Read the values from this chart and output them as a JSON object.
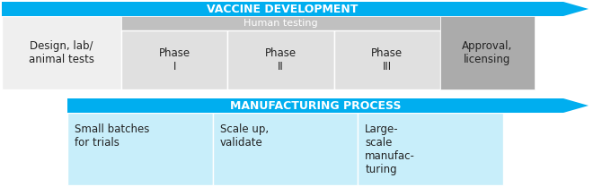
{
  "background_color": "#ffffff",
  "cyan_color": "#00AEEF",
  "light_blue": "#C8EEFA",
  "light_gray": "#E0E0E0",
  "mid_gray": "#C0C0C0",
  "approval_gray": "#ABABAB",
  "design_gray": "#EFEFEF",
  "white": "#FFFFFF",
  "text_dark": "#222222",
  "text_white": "#FFFFFF",
  "section1_title": "VACCINE DEVELOPMENT",
  "section2_title": "MANUFACTURING PROCESS",
  "cell1_label": "Design, lab/\nanimal tests",
  "human_testing_label": "Human testing",
  "phase1_label": "Phase\nI",
  "phase2_label": "Phase\nII",
  "phase3_label": "Phase\nIII",
  "approval_label": "Approval,\nlicensing",
  "mfg1_label": "Small batches\nfor trials",
  "mfg2_label": "Scale up,\nvalidate",
  "mfg3_label": "Large-\nscale\nmanufac-\nturing",
  "fig_width": 6.8,
  "fig_height": 2.09,
  "dpi": 100
}
